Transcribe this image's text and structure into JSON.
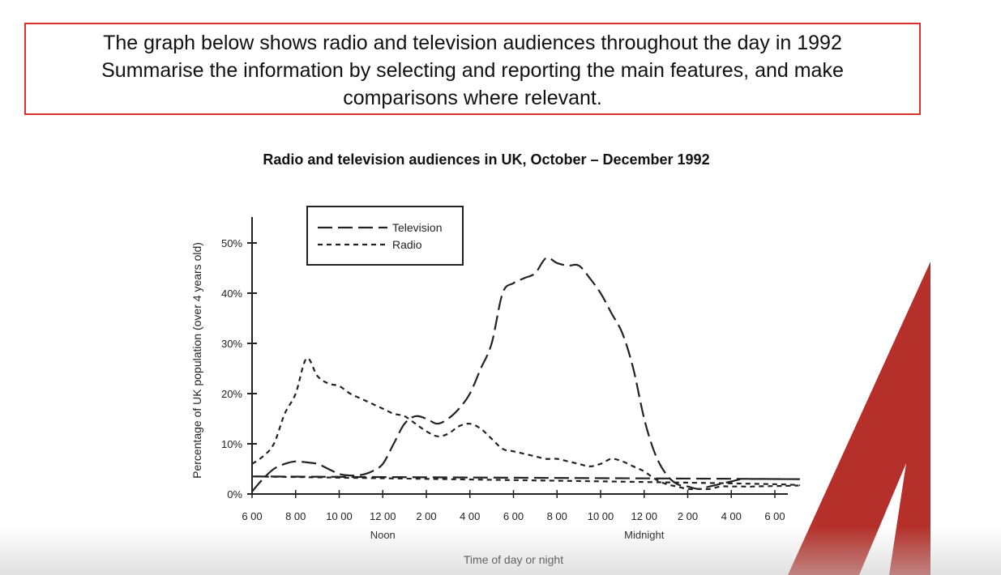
{
  "prompt": {
    "lines": [
      "The graph below shows radio and television audiences throughout the day in 1992",
      "Summarise the information by selecting and reporting the main features, and make",
      "comparisons where relevant."
    ]
  },
  "colors": {
    "prompt_border": "#d9322e",
    "logo": "#b5302a",
    "line": "#222222"
  },
  "logo": {
    "icon": "brand-slash-logo-icon"
  },
  "chart_data": {
    "type": "line",
    "title": "Radio and television audiences in UK, October – December 1992",
    "xlabel": "Time of day or night",
    "ylabel": "Percentage of UK population (over 4 years old)",
    "ylim": [
      0,
      50
    ],
    "x_ticks": [
      "6 00",
      "8 00",
      "10 00",
      "12 00",
      "2 00",
      "4 00",
      "6 00",
      "8 00",
      "10 00",
      "12 00",
      "2 00",
      "4 00",
      "6 00"
    ],
    "x_sublabels": [
      {
        "tick_index": 3,
        "text": "Noon"
      },
      {
        "tick_index": 9,
        "text": "Midnight"
      }
    ],
    "y_ticks": [
      "0%",
      "10%",
      "20%",
      "30%",
      "40%",
      "50%"
    ],
    "y_tick_values": [
      0,
      10,
      20,
      30,
      40,
      50
    ],
    "legend": {
      "position": "top-left",
      "entries": [
        "Television",
        "Radio"
      ]
    },
    "grid": false,
    "series": [
      {
        "name": "Television",
        "style": "long-dash",
        "x": [
          "6:00",
          "6:30",
          "7:00",
          "7:30",
          "8:00",
          "8:30",
          "9:00",
          "9:30",
          "10:00",
          "10:30",
          "11:00",
          "11:30",
          "12:00",
          "12:30",
          "13:00",
          "13:30",
          "14:00",
          "14:30",
          "15:00",
          "15:30",
          "16:00",
          "16:30",
          "17:00",
          "17:30",
          "18:00",
          "18:30",
          "19:00",
          "19:30",
          "20:00",
          "20:30",
          "21:00",
          "21:30",
          "22:00",
          "22:30",
          "23:00",
          "23:30",
          "0:00",
          "0:30",
          "1:00",
          "1:30",
          "2:00",
          "2:30",
          "3:00",
          "3:30",
          "4:00",
          "4:30",
          "5:00",
          "5:30",
          "6:00"
        ],
        "values": [
          0.5,
          3,
          5,
          6,
          6.5,
          6.3,
          6,
          5,
          4,
          3.7,
          3.8,
          4.5,
          6,
          10,
          14,
          15.5,
          15,
          14,
          15,
          17,
          20,
          25,
          30,
          40,
          42,
          43,
          44,
          47,
          46,
          45.5,
          45.5,
          43,
          40,
          36,
          32,
          25,
          15,
          8,
          4,
          2,
          1.5,
          1,
          1.5,
          2,
          2.5,
          3,
          3,
          3,
          3.5
        ]
      },
      {
        "name": "Radio",
        "style": "short-dash",
        "x": [
          "6:00",
          "6:30",
          "7:00",
          "7:30",
          "8:00",
          "8:30",
          "9:00",
          "9:30",
          "10:00",
          "10:30",
          "11:00",
          "11:30",
          "12:00",
          "12:30",
          "13:00",
          "13:30",
          "14:00",
          "14:30",
          "15:00",
          "15:30",
          "16:00",
          "16:30",
          "17:00",
          "17:30",
          "18:00",
          "18:30",
          "19:00",
          "19:30",
          "20:00",
          "20:30",
          "21:00",
          "21:30",
          "22:00",
          "22:30",
          "23:00",
          "23:30",
          "0:00",
          "0:30",
          "1:00",
          "1:30",
          "2:00",
          "2:30",
          "3:00",
          "3:30",
          "4:00",
          "4:30",
          "5:00",
          "5:30",
          "6:00"
        ],
        "values": [
          6,
          7.5,
          10,
          16,
          20,
          27,
          23.5,
          22,
          21.5,
          20,
          19,
          18,
          17,
          16,
          15.5,
          14,
          12.5,
          11.5,
          12,
          13.5,
          14,
          13,
          11,
          9,
          8.5,
          8,
          7.5,
          7,
          7,
          6.5,
          6,
          5.5,
          6,
          7,
          6.5,
          5.5,
          4.5,
          3,
          2,
          1.5,
          1,
          1,
          1,
          1.5,
          1.5,
          1.5,
          1.5,
          2,
          3.5
        ]
      }
    ]
  }
}
